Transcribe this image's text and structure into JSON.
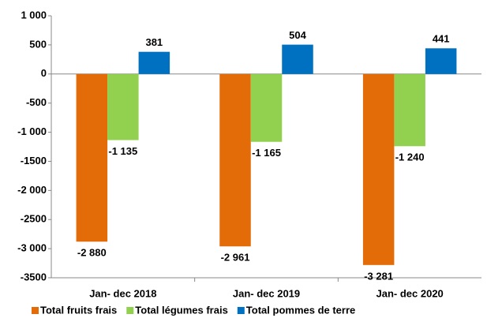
{
  "chart_data": {
    "type": "bar",
    "categories": [
      "Jan- dec 2018",
      "Jan- dec 2019",
      "Jan- dec 2020"
    ],
    "series": [
      {
        "name": "Total fruits frais",
        "color": "#e36c09",
        "values": [
          -2880,
          -2961,
          -3281
        ],
        "value_labels": [
          "-2 880",
          "-2 961",
          "-3 281"
        ]
      },
      {
        "name": "Total légumes frais",
        "color": "#92d050",
        "values": [
          -1135,
          -1165,
          -1240
        ],
        "value_labels": [
          "-1 135",
          "-1 165",
          "-1 240"
        ]
      },
      {
        "name": "Total pommes de terre",
        "color": "#0070c0",
        "values": [
          381,
          504,
          441
        ]
      }
    ],
    "ylim": [
      -3500,
      1000
    ],
    "yticks": [
      -3500,
      {
        "value": -3000,
        "label": "-3 000"
      },
      -2500,
      {
        "value": -2000,
        "label": "-2 000"
      },
      -1500,
      {
        "value": -1000,
        "label": "-1 000"
      },
      -500,
      0,
      500,
      {
        "value": 1000,
        "label": "1 000"
      }
    ],
    "legend": "bottom"
  }
}
